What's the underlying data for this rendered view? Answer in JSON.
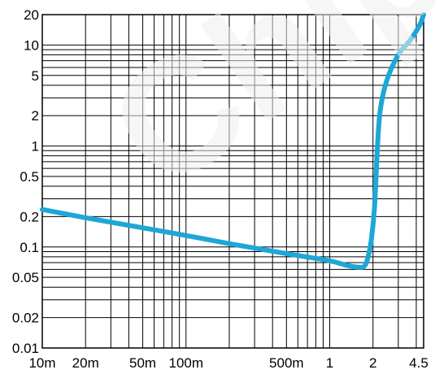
{
  "chart_data": {
    "type": "line",
    "x_scale": "log",
    "y_scale": "log",
    "xlim": [
      0.01,
      4.5
    ],
    "ylim": [
      0.01,
      20
    ],
    "grid": true,
    "x_tick_labels": [
      {
        "v": 0.01,
        "label": "10m"
      },
      {
        "v": 0.02,
        "label": "20m"
      },
      {
        "v": 0.05,
        "label": "50m"
      },
      {
        "v": 0.1,
        "label": "100m"
      },
      {
        "v": 0.5,
        "label": "500m"
      },
      {
        "v": 1,
        "label": "1"
      },
      {
        "v": 2,
        "label": "2"
      },
      {
        "v": 4.5,
        "label": "4.5"
      }
    ],
    "y_tick_labels": [
      {
        "v": 20,
        "label": "20"
      },
      {
        "v": 10,
        "label": "10"
      },
      {
        "v": 5,
        "label": "5"
      },
      {
        "v": 2,
        "label": "2"
      },
      {
        "v": 1,
        "label": "1"
      },
      {
        "v": 0.5,
        "label": "0.5"
      },
      {
        "v": 0.2,
        "label": "0.2"
      },
      {
        "v": 0.1,
        "label": "0.1"
      },
      {
        "v": 0.05,
        "label": "0.05"
      },
      {
        "v": 0.02,
        "label": "0.02"
      },
      {
        "v": 0.01,
        "label": "0.01"
      }
    ],
    "x_grid_values": [
      0.01,
      0.02,
      0.03,
      0.04,
      0.05,
      0.06,
      0.07,
      0.08,
      0.09,
      0.1,
      0.2,
      0.3,
      0.4,
      0.5,
      0.6,
      0.7,
      0.8,
      0.9,
      1,
      2,
      3,
      4,
      4.5
    ],
    "y_grid_values": [
      0.01,
      0.02,
      0.03,
      0.04,
      0.05,
      0.06,
      0.07,
      0.08,
      0.09,
      0.1,
      0.2,
      0.3,
      0.4,
      0.5,
      0.6,
      0.7,
      0.8,
      0.9,
      1,
      2,
      3,
      4,
      5,
      6,
      7,
      8,
      9,
      10,
      20
    ],
    "series": [
      {
        "color": "#1ea7d6",
        "points": [
          [
            0.01,
            0.235
          ],
          [
            0.02,
            0.195
          ],
          [
            0.05,
            0.155
          ],
          [
            0.1,
            0.13
          ],
          [
            0.2,
            0.108
          ],
          [
            0.5,
            0.086
          ],
          [
            1,
            0.073
          ],
          [
            1.3,
            0.066
          ],
          [
            1.6,
            0.063
          ],
          [
            1.75,
            0.065
          ],
          [
            1.85,
            0.08
          ],
          [
            1.95,
            0.12
          ],
          [
            2.05,
            0.25
          ],
          [
            2.15,
            1.0
          ],
          [
            2.25,
            2.3
          ],
          [
            2.5,
            4.5
          ],
          [
            3.0,
            8.0
          ],
          [
            3.6,
            11.0
          ],
          [
            4.2,
            15.5
          ],
          [
            4.5,
            20
          ]
        ]
      }
    ]
  },
  "watermark": {
    "text": "Chip",
    "color": "#eeeeee"
  }
}
